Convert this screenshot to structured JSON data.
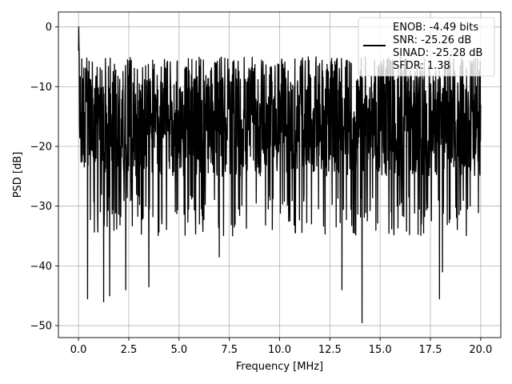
{
  "chart_data": {
    "type": "line",
    "title": "",
    "xlabel": "Frequency [MHz]",
    "ylabel": "PSD [dB]",
    "xlim": [
      -1.0,
      21.0
    ],
    "ylim": [
      -52.0,
      2.5
    ],
    "xticks": [
      0.0,
      2.5,
      5.0,
      7.5,
      10.0,
      12.5,
      15.0,
      17.5,
      20.0
    ],
    "xtick_labels": [
      "0.0",
      "2.5",
      "5.0",
      "7.5",
      "10.0",
      "12.5",
      "15.0",
      "17.5",
      "20.0"
    ],
    "yticks": [
      0,
      -10,
      -20,
      -30,
      -40,
      -50
    ],
    "ytick_labels": [
      "0",
      "−10",
      "−20",
      "−30",
      "−40",
      "−50"
    ],
    "grid": true,
    "legend_position": "top-right",
    "legend_lines": [
      "ENOB: -4.49 bits",
      "SNR: -25.26 dB",
      "SINAD: -25.28 dB",
      "SFDR: 1.38"
    ],
    "series": [
      {
        "color": "#000000",
        "description": "dense noise-like PSD trace, mostly between -25 and -8 dB",
        "x_range": [
          0.0,
          20.0
        ],
        "peak": {
          "x": 0.02,
          "y": 0.0
        },
        "typical_band": [
          -25,
          -8
        ],
        "deep_dips": [
          {
            "x": 0.45,
            "y": -45.5
          },
          {
            "x": 1.25,
            "y": -46.0
          },
          {
            "x": 1.55,
            "y": -45.0
          },
          {
            "x": 2.35,
            "y": -44.0
          },
          {
            "x": 3.5,
            "y": -43.5
          },
          {
            "x": 7.0,
            "y": -38.5
          },
          {
            "x": 13.1,
            "y": -44.0
          },
          {
            "x": 14.1,
            "y": -49.5
          },
          {
            "x": 17.95,
            "y": -45.5
          },
          {
            "x": 18.1,
            "y": -41.0
          }
        ]
      }
    ]
  }
}
